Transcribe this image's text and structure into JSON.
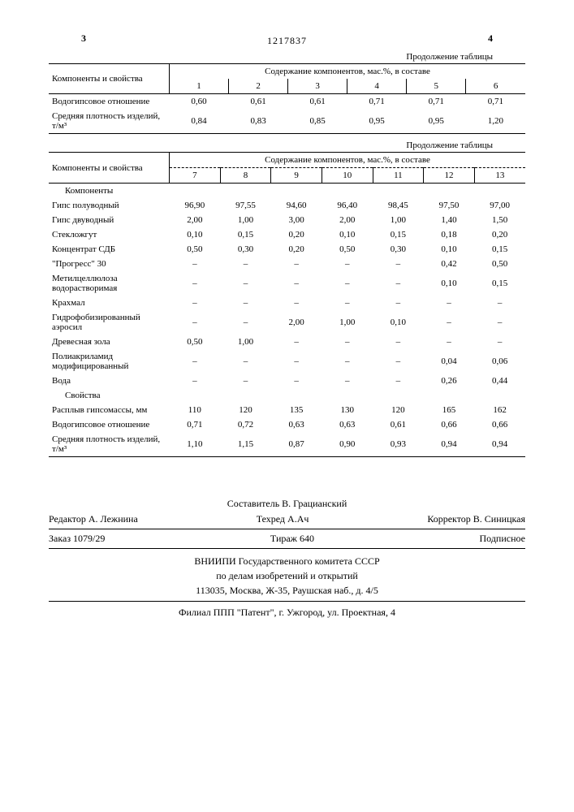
{
  "page_left": "3",
  "page_right": "4",
  "patent_no": "1217837",
  "cont1": "Продолжение таблицы",
  "cont2": "Продолжение таблицы",
  "t1": {
    "h1": "Компоненты и свойства",
    "h2": "Содержание компонентов, мас.%, в составе",
    "cols": [
      "1",
      "2",
      "3",
      "4",
      "5",
      "6"
    ],
    "rows": [
      {
        "l": "Водогипсовое отношение",
        "v": [
          "0,60",
          "0,61",
          "0,61",
          "0,71",
          "0,71",
          "0,71"
        ]
      },
      {
        "l": "Средняя плотность изделий, т/м³",
        "v": [
          "0,84",
          "0,83",
          "0,85",
          "0,95",
          "0,95",
          "1,20"
        ]
      }
    ]
  },
  "t2": {
    "h1": "Компоненты и свойства",
    "h2": "Содержание компонентов, мас.%, в составе",
    "cols": [
      "7",
      "8",
      "9",
      "10",
      "11",
      "12",
      "13"
    ],
    "sec1": "Компоненты",
    "sec2": "Свойства",
    "rows1": [
      {
        "l": "Гипс полуводный",
        "v": [
          "96,90",
          "97,55",
          "94,60",
          "96,40",
          "98,45",
          "97,50",
          "97,00"
        ]
      },
      {
        "l": "Гипс двуводный",
        "v": [
          "2,00",
          "1,00",
          "3,00",
          "2,00",
          "1,00",
          "1,40",
          "1,50"
        ]
      },
      {
        "l": "Стекложгут",
        "v": [
          "0,10",
          "0,15",
          "0,20",
          "0,10",
          "0,15",
          "0,18",
          "0,20"
        ]
      },
      {
        "l": "Концентрат СДБ",
        "v": [
          "0,50",
          "0,30",
          "0,20",
          "0,50",
          "0,30",
          "0,10",
          "0,15"
        ]
      },
      {
        "l": "\"Прогресс\" 30",
        "v": [
          "–",
          "–",
          "–",
          "–",
          "–",
          "0,42",
          "0,50"
        ]
      },
      {
        "l": "Метилцеллюлоза водорастворимая",
        "v": [
          "–",
          "–",
          "–",
          "–",
          "–",
          "0,10",
          "0,15"
        ]
      },
      {
        "l": "Крахмал",
        "v": [
          "–",
          "–",
          "–",
          "–",
          "–",
          "–",
          "–"
        ]
      },
      {
        "l": "Гидрофобизиро­ванный аэросил",
        "v": [
          "–",
          "–",
          "2,00",
          "1,00",
          "0,10",
          "–",
          "–"
        ]
      },
      {
        "l": "Древесная зола",
        "v": [
          "0,50",
          "1,00",
          "–",
          "–",
          "–",
          "–",
          "–"
        ]
      },
      {
        "l": "Полиакриламид модифицированный",
        "v": [
          "–",
          "–",
          "–",
          "–",
          "–",
          "0,04",
          "0,06"
        ]
      },
      {
        "l": "Вода",
        "v": [
          "–",
          "–",
          "–",
          "–",
          "–",
          "0,26",
          "0,44"
        ]
      }
    ],
    "rows2": [
      {
        "l": "Расплыв гипсо­массы, мм",
        "v": [
          "110",
          "120",
          "135",
          "130",
          "120",
          "165",
          "162"
        ]
      },
      {
        "l": "Водогипсовое отношение",
        "v": [
          "0,71",
          "0,72",
          "0,63",
          "0,63",
          "0,61",
          "0,66",
          "0,66"
        ]
      },
      {
        "l": "Средняя плотность изделий, т/м³",
        "v": [
          "1,10",
          "1,15",
          "0,87",
          "0,90",
          "0,93",
          "0,94",
          "0,94"
        ]
      }
    ]
  },
  "colophon": {
    "compiler": "Составитель В. Грацианский",
    "editor": "Редактор А. Лежнина",
    "tech": "Техред А.Ач",
    "corrector": "Корректор В. Синицкая",
    "order": "Заказ 1079/29",
    "tirazh": "Тираж 640",
    "podpis": "Подписное",
    "line1": "ВНИИПИ Государственного комитета СССР",
    "line2": "по делам изобретений и открытий",
    "line3": "113035, Москва, Ж-35, Раушская наб., д. 4/5",
    "line4": "Филиал ППП \"Патент\", г. Ужгород, ул. Проектная, 4"
  }
}
